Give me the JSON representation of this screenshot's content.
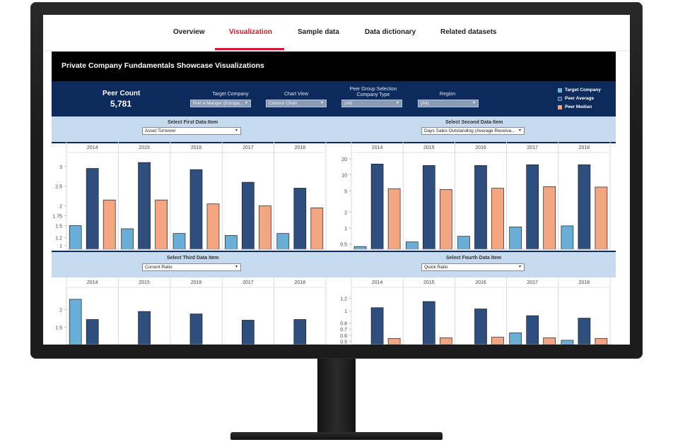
{
  "tabs": [
    {
      "label": "Overview"
    },
    {
      "label": "Visualization"
    },
    {
      "label": "Sample data"
    },
    {
      "label": "Data dictionary"
    },
    {
      "label": "Related datasets"
    }
  ],
  "dashboard": {
    "title": "Private Company Fundamentals Showcase Visualizations",
    "peer_count_label": "Peer Count",
    "peer_count_value": "5,781",
    "filters": {
      "target_company": {
        "label": "Target Company",
        "value": "Pret A Manger (Europe..."
      },
      "chart_view": {
        "label": "Chart View",
        "value": "Column Chart"
      },
      "peer_group": {
        "label_line1": "Peer Group Selection",
        "label_line2": "Company Type",
        "value": "(All)"
      },
      "region": {
        "label": "Region",
        "value": "(All)"
      }
    },
    "legend": [
      {
        "name": "Target Company",
        "color": "#6aaed6"
      },
      {
        "name": "Peer Average",
        "color": "#2e4f7d"
      },
      {
        "name": "Peer Median",
        "color": "#f4a582"
      }
    ],
    "selectors": {
      "first": {
        "label": "Select First Data Item",
        "value": "Asset Turnover"
      },
      "second": {
        "label": "Select Second Data Item",
        "value": "Days Sales Outstanding (Average Receiva..."
      },
      "third": {
        "label": "Select Third Data Item",
        "value": "Current Ratio"
      },
      "fourth": {
        "label": "Select Fourth Data Item",
        "value": "Quick Ratio"
      }
    }
  },
  "chart_data": [
    {
      "type": "bar",
      "categories": [
        "2014",
        "2015",
        "2016",
        "2017",
        "2018"
      ],
      "yticks": [
        "3",
        "2.5",
        "2",
        "1.75",
        "1.5",
        "1.2",
        "1"
      ],
      "series": [
        {
          "name": "Target Company",
          "values": [
            1.5,
            1.42,
            1.3,
            1.25,
            1.3
          ]
        },
        {
          "name": "Peer Average",
          "values": [
            2.95,
            3.1,
            2.92,
            2.6,
            2.45
          ]
        },
        {
          "name": "Peer Median",
          "values": [
            2.15,
            2.15,
            2.05,
            2.0,
            1.95
          ]
        }
      ]
    },
    {
      "type": "bar",
      "categories": [
        "2014",
        "2015",
        "2016",
        "2017",
        "2018"
      ],
      "yticks": [
        "20",
        "10",
        "5",
        "2",
        "1",
        "0.5"
      ],
      "series": [
        {
          "name": "Target Company",
          "values": [
            0.45,
            0.55,
            0.7,
            1.05,
            1.1
          ]
        },
        {
          "name": "Peer Average",
          "values": [
            16,
            15,
            15,
            15.5,
            15.5
          ]
        },
        {
          "name": "Peer Median",
          "values": [
            5.5,
            5.3,
            5.6,
            6.0,
            5.9
          ]
        }
      ]
    },
    {
      "type": "bar",
      "categories": [
        "2014",
        "2015",
        "2016",
        "2017",
        "2018"
      ],
      "yticks": [
        "2",
        "1.5"
      ],
      "series": [
        {
          "name": "Target Company",
          "values": [
            2.3,
            0,
            0,
            0,
            0
          ]
        },
        {
          "name": "Peer Average",
          "values": [
            1.72,
            1.95,
            1.88,
            1.7,
            1.72
          ]
        },
        {
          "name": "Peer Median",
          "values": [
            0,
            0,
            0,
            0,
            0
          ]
        }
      ]
    },
    {
      "type": "bar",
      "categories": [
        "2014",
        "2015",
        "2016",
        "2017",
        "2018"
      ],
      "yticks": [
        "1.2",
        "1",
        "0.8",
        "0.7",
        "0.6",
        "0.5"
      ],
      "series": [
        {
          "name": "Target Company",
          "values": [
            0,
            0,
            0,
            0.64,
            0.52
          ]
        },
        {
          "name": "Peer Average",
          "values": [
            1.05,
            1.15,
            1.03,
            0.92,
            0.88
          ]
        },
        {
          "name": "Peer Median",
          "values": [
            0.55,
            0.56,
            0.57,
            0.56,
            0.55
          ]
        }
      ]
    }
  ]
}
